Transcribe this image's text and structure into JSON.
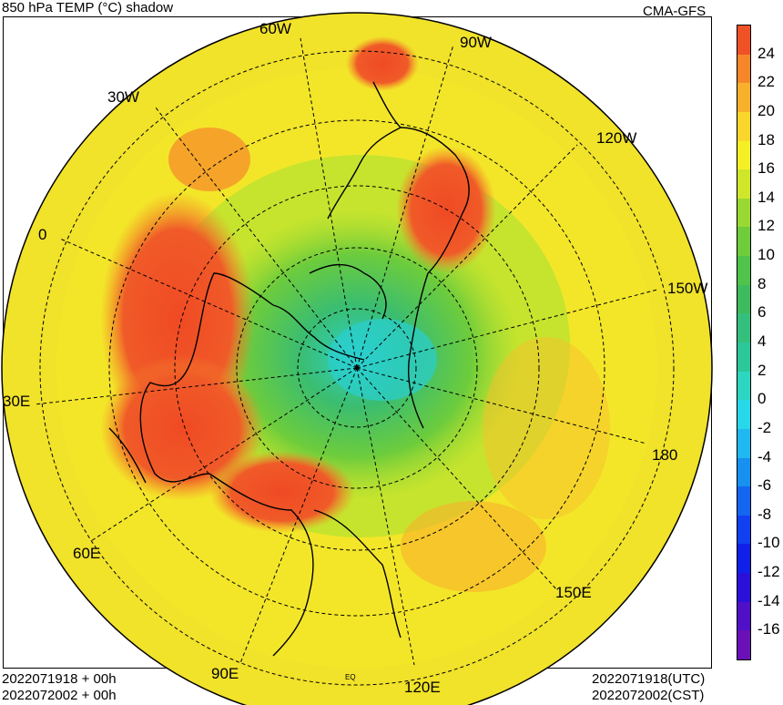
{
  "header": {
    "title": "850 hPa TEMP (°C) shadow",
    "source": "CMA-GFS"
  },
  "footer": {
    "left_line1": "2022071918 + 00h",
    "left_line2": "2022072002 + 00h",
    "right_line1": "2022071918(UTC)",
    "right_line2": "2022072002(CST)"
  },
  "map": {
    "projection": "north-polar-stereographic",
    "longitude_labels": {
      "lon_60W": "60W",
      "lon_90W": "90W",
      "lon_30W": "30W",
      "lon_120W": "120W",
      "lon_0": "0",
      "lon_150W": "150W",
      "lon_30E": "30E",
      "lon_180": "180",
      "lon_60E": "60E",
      "lon_150E": "150E",
      "lon_90E": "90E",
      "lon_120E": "120E"
    },
    "equator_label": "EQ"
  },
  "colorbar": {
    "ticks": [
      "24",
      "22",
      "20",
      "18",
      "16",
      "14",
      "12",
      "10",
      "8",
      "6",
      "4",
      "2",
      "0",
      "-2",
      "-4",
      "-6",
      "-8",
      "-10",
      "-12",
      "-14",
      "-16"
    ],
    "colors": [
      "#f05228",
      "#f5872a",
      "#f8b02c",
      "#fad62c",
      "#f5f026",
      "#cfe62b",
      "#9ad932",
      "#6fcc3b",
      "#4fc34a",
      "#3dbb5e",
      "#34c07c",
      "#2cc89a",
      "#2cd6c0",
      "#28d8e8",
      "#20b8f0",
      "#1890f0",
      "#1466f0",
      "#1040f0",
      "#1020e8",
      "#2a10d8",
      "#5010c8",
      "#6a10b8"
    ]
  }
}
